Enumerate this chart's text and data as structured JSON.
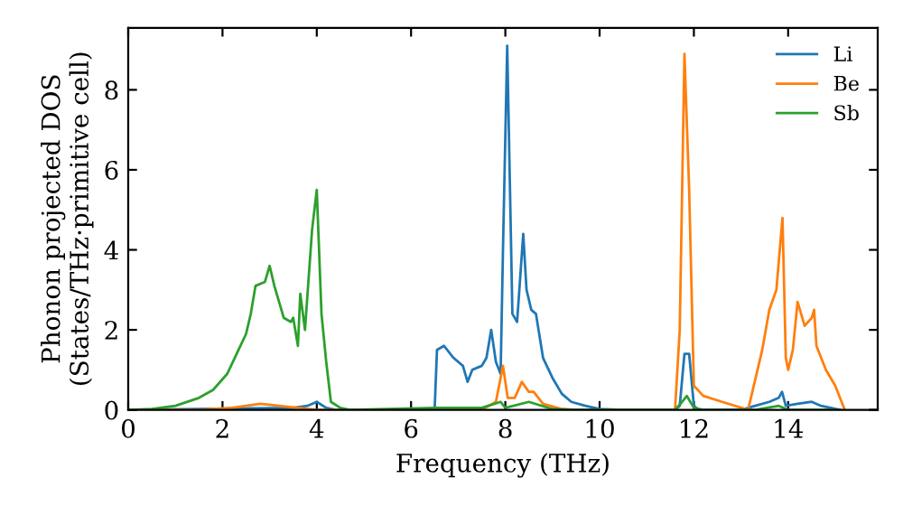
{
  "chart_data": {
    "type": "line",
    "xlabel": "Frequency (THz)",
    "ylabel": "Phonon projected DOS\n(States/THz·primitive cell)",
    "xlim": [
      0,
      15.9
    ],
    "ylim": [
      0,
      9.55
    ],
    "xticks": [
      0,
      2,
      4,
      6,
      8,
      10,
      12,
      14
    ],
    "yticks": [
      0,
      2,
      4,
      6,
      8
    ],
    "grid": false,
    "legend": "top right",
    "marker": "none",
    "line_style": "solid",
    "series": [
      {
        "name": "Li",
        "color": "#1f77b4",
        "x": [
          0,
          3.5,
          3.8,
          4.0,
          4.2,
          4.4,
          6.5,
          6.55,
          6.7,
          6.9,
          7.1,
          7.2,
          7.3,
          7.5,
          7.6,
          7.7,
          7.8,
          7.9,
          7.95,
          8.04,
          8.15,
          8.25,
          8.38,
          8.45,
          8.55,
          8.65,
          8.8,
          9.0,
          9.2,
          9.4,
          9.7,
          10.0,
          10.5,
          11.6,
          11.7,
          11.8,
          11.9,
          12.0,
          12.1,
          13.0,
          13.3,
          13.6,
          13.8,
          13.87,
          13.95,
          14.2,
          14.5,
          14.7,
          15.1
        ],
        "values": [
          0,
          0.05,
          0.1,
          0.2,
          0.05,
          0,
          0,
          1.5,
          1.6,
          1.3,
          1.1,
          0.7,
          1.0,
          1.1,
          1.3,
          2.0,
          1.2,
          0.9,
          4.0,
          9.1,
          2.4,
          2.2,
          4.4,
          3.0,
          2.5,
          2.4,
          1.3,
          0.8,
          0.4,
          0.2,
          0.1,
          0.02,
          0,
          0,
          0.1,
          1.4,
          1.4,
          0.1,
          0,
          0,
          0.1,
          0.2,
          0.3,
          0.45,
          0.1,
          0.15,
          0.2,
          0.1,
          0
        ]
      },
      {
        "name": "Be",
        "color": "#ff7f0e",
        "x": [
          0,
          1.5,
          2.2,
          2.8,
          3.2,
          3.6,
          4.0,
          7.5,
          7.8,
          7.95,
          8.05,
          8.2,
          8.35,
          8.5,
          8.6,
          8.8,
          9.2,
          9.5,
          11.6,
          11.7,
          11.8,
          11.9,
          12.0,
          12.2,
          12.6,
          13.15,
          13.35,
          13.45,
          13.6,
          13.75,
          13.88,
          13.95,
          14.0,
          14.1,
          14.2,
          14.35,
          14.5,
          14.55,
          14.6,
          14.8,
          15.0,
          15.1,
          15.2
        ],
        "values": [
          0,
          0,
          0.05,
          0.15,
          0.1,
          0.05,
          0,
          0,
          0.2,
          1.1,
          0.3,
          0.3,
          0.7,
          0.45,
          0.45,
          0.15,
          0.02,
          0,
          0,
          2.0,
          8.9,
          5.5,
          0.6,
          0.35,
          0.2,
          0,
          1.0,
          1.5,
          2.5,
          3.0,
          4.8,
          1.3,
          1.0,
          1.5,
          2.7,
          2.1,
          2.3,
          2.5,
          1.6,
          1.0,
          0.6,
          0.3,
          0
        ]
      },
      {
        "name": "Sb",
        "color": "#2ca02c",
        "x": [
          0,
          0.5,
          1.0,
          1.5,
          1.8,
          2.1,
          2.3,
          2.5,
          2.6,
          2.7,
          2.9,
          3.0,
          3.1,
          3.2,
          3.3,
          3.45,
          3.5,
          3.6,
          3.65,
          3.75,
          3.9,
          4.0,
          4.1,
          4.2,
          4.3,
          4.5,
          4.7,
          6.5,
          7.5,
          7.9,
          8.0,
          8.5,
          9.0,
          9.5,
          11.6,
          11.75,
          11.85,
          12.0,
          12.2,
          13.3,
          13.8,
          14.0,
          15.0
        ],
        "values": [
          0,
          0.02,
          0.1,
          0.3,
          0.5,
          0.9,
          1.4,
          1.9,
          2.4,
          3.1,
          3.2,
          3.6,
          3.1,
          2.7,
          2.3,
          2.2,
          2.3,
          1.6,
          2.9,
          2.0,
          4.5,
          5.5,
          2.4,
          1.2,
          0.2,
          0.05,
          0,
          0.05,
          0.05,
          0.2,
          0.05,
          0.2,
          0.02,
          0,
          0,
          0.2,
          0.35,
          0.05,
          0,
          0,
          0.1,
          0,
          0
        ]
      }
    ]
  }
}
